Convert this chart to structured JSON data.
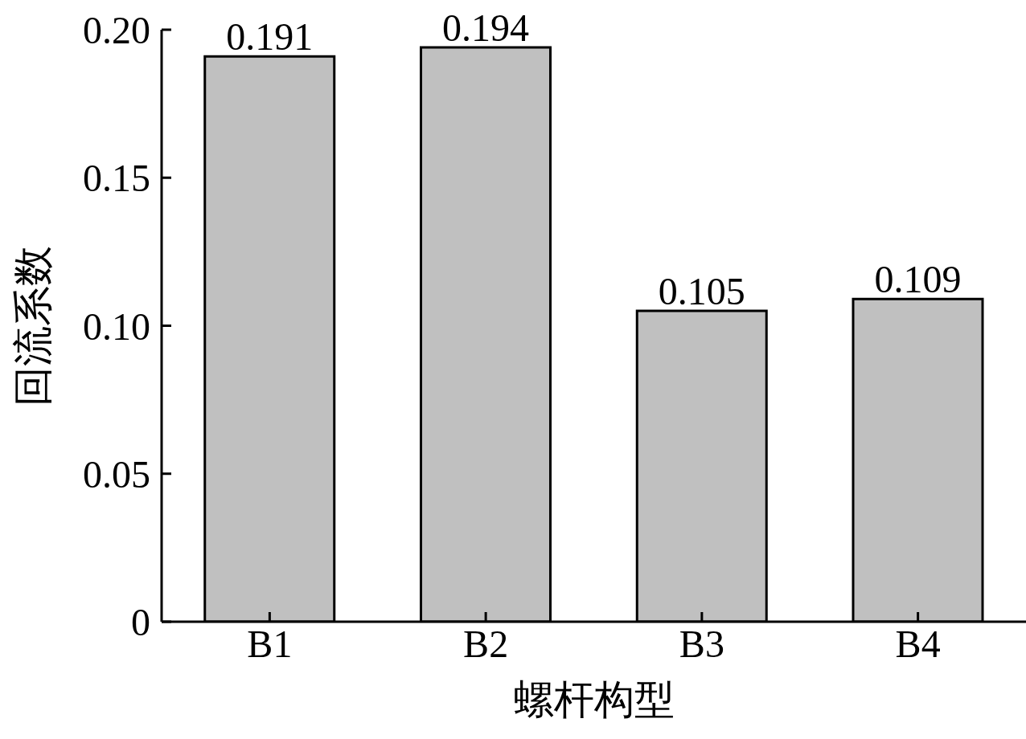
{
  "chart_data": {
    "type": "bar",
    "xlabel": "螺杆构型",
    "ylabel": "回流系数",
    "categories": [
      "B1",
      "B2",
      "B3",
      "B4"
    ],
    "values": [
      0.191,
      0.194,
      0.105,
      0.109
    ],
    "color": "#c0c0c0",
    "ylim": [
      0,
      0.2
    ],
    "yticks": [
      0,
      0.05,
      {
        "value": 0.1,
        "label": "0.10"
      },
      0.15,
      {
        "value": 0.2,
        "label": "0.20"
      }
    ],
    "data_labels": true
  }
}
